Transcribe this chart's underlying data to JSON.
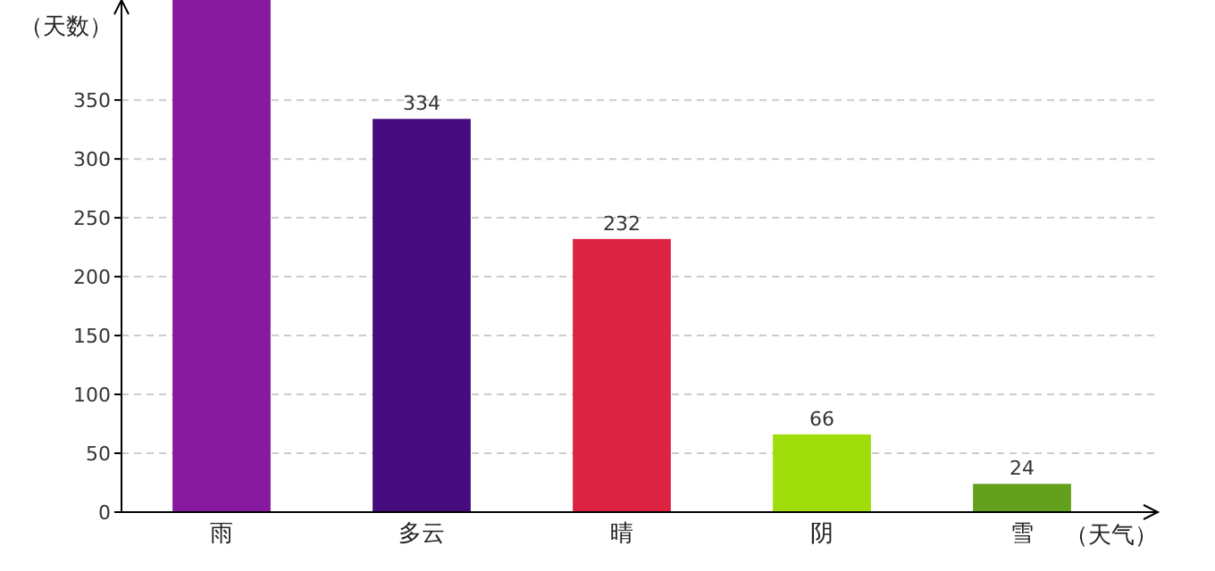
{
  "chart_data": {
    "type": "bar",
    "xlabel": "（天气）",
    "ylabel": "（天数）",
    "categories": [
      "雨",
      "多云",
      "晴",
      "阴",
      "雪"
    ],
    "values": [
      435,
      334,
      232,
      66,
      24
    ],
    "value_labels": [
      null,
      "334",
      "232",
      "66",
      "24"
    ],
    "colors": [
      "#861a9e",
      "#460b7d",
      "#dc2442",
      "#a0dc0a",
      "#63a01c"
    ],
    "ylim": [
      0,
      435
    ],
    "yticks": [
      0,
      50,
      100,
      150,
      200,
      250,
      300,
      350
    ],
    "grid": "y"
  }
}
